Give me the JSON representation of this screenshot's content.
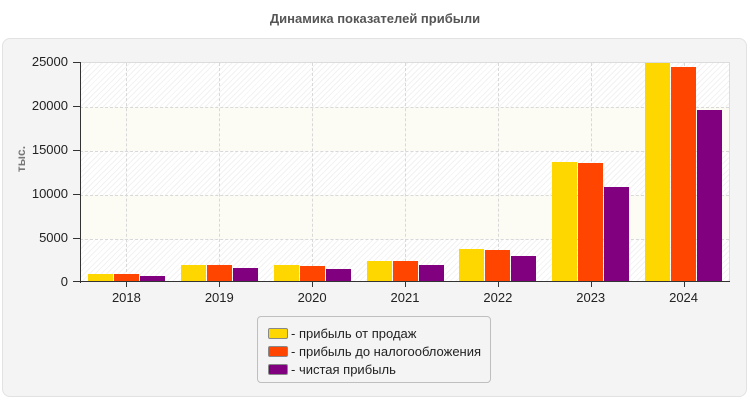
{
  "chart_data": {
    "type": "bar",
    "title": "Динамика показателей прибыли",
    "xlabel": "",
    "ylabel": "тыс.",
    "ylim": [
      0,
      25000
    ],
    "yticks": [
      0,
      5000,
      10000,
      15000,
      20000,
      25000
    ],
    "grid": true,
    "legend_position": "bottom",
    "categories": [
      "2018",
      "2019",
      "2020",
      "2021",
      "2022",
      "2023",
      "2024"
    ],
    "series": [
      {
        "name": "- прибыль от продаж",
        "color": "#ffd700",
        "values": [
          900,
          1950,
          1950,
          2400,
          3750,
          13650,
          25000
        ]
      },
      {
        "name": "- прибыль до налогообложения",
        "color": "#ff4500",
        "values": [
          900,
          1950,
          1850,
          2400,
          3650,
          13500,
          24450
        ]
      },
      {
        "name": "- чистая прибыль",
        "color": "#800080",
        "values": [
          700,
          1600,
          1500,
          1950,
          2950,
          10800,
          19550
        ]
      }
    ]
  },
  "header": {
    "title": "Динамика показателей прибыли"
  },
  "axis": {
    "y_unit": "тыс.",
    "y_labels": [
      "25000",
      "20000",
      "15000",
      "10000",
      "5000",
      "0"
    ]
  }
}
